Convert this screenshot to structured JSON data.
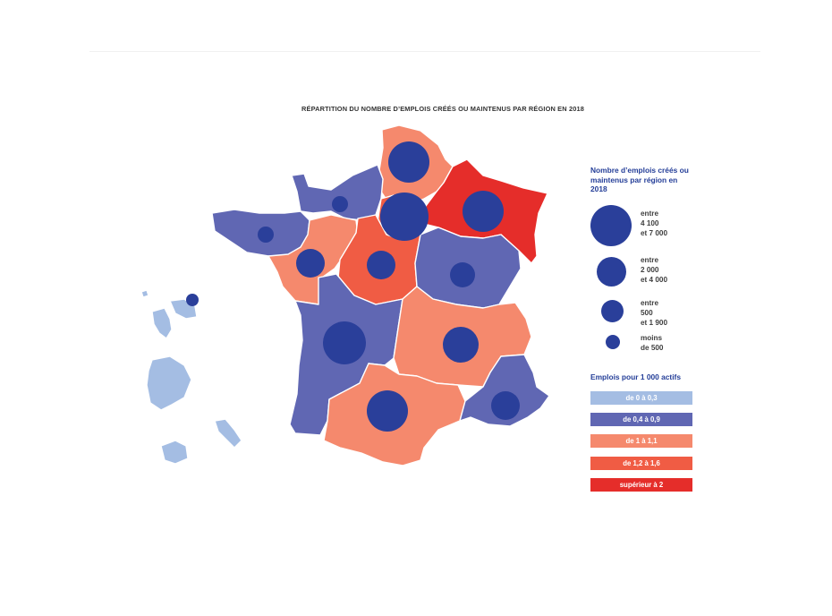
{
  "map_title": "RÉPARTITION DU NOMBRE D’EMPLOIS CRÉÉS OU MAINTENUS PAR RÉGION EN 2018",
  "colors": {
    "light_blue": "#a4bde3",
    "mid_blue": "#6067b3",
    "salmon": "#f5896d",
    "orange_red": "#f05c44",
    "red": "#e52d2a",
    "bubble": "#2a3f9a"
  },
  "legend": {
    "jobs_heading": "Nombre d’emplois créés ou maintenus par région en 2018",
    "size_classes": [
      {
        "line1": "entre",
        "line2": "4 100",
        "line3": "et 7 000"
      },
      {
        "line1": "entre",
        "line2": "2 000",
        "line3": "et 4 000"
      },
      {
        "line1": "entre",
        "line2": "500",
        "line3": "et 1 900"
      },
      {
        "line1": "moins",
        "line2": "de 500",
        "line3": ""
      }
    ],
    "ratio_heading": "Emplois pour 1 000 actifs",
    "ratio_classes": [
      {
        "label": "de 0 à 0,3",
        "color": "#a4bde3"
      },
      {
        "label": "de 0,4 à 0,9",
        "color": "#6067b3"
      },
      {
        "label": "de 1 à 1,1",
        "color": "#f5896d"
      },
      {
        "label": "de 1,2 à 1,6",
        "color": "#f05c44"
      },
      {
        "label": "supérieur à 2",
        "color": "#e52d2a"
      }
    ]
  },
  "regions": [
    {
      "name": "hauts-de-france",
      "ratio_class": "de 1 à 1,1",
      "size_class": "entre 2 000 et 4 000"
    },
    {
      "name": "grand-est",
      "ratio_class": "supérieur à 2",
      "size_class": "entre 2 000 et 4 000"
    },
    {
      "name": "normandie",
      "ratio_class": "de 0,4 à 0,9",
      "size_class": "moins de 500"
    },
    {
      "name": "ile-de-france",
      "ratio_class": "de 1,2 à 1,6",
      "size_class": "entre 4 100 et 7 000"
    },
    {
      "name": "bretagne",
      "ratio_class": "de 0,4 à 0,9",
      "size_class": "moins de 500"
    },
    {
      "name": "pays-de-la-loire",
      "ratio_class": "de 1 à 1,1",
      "size_class": "entre 500 et 1 900"
    },
    {
      "name": "centre-val-de-loire",
      "ratio_class": "de 1,2 à 1,6",
      "size_class": "entre 500 et 1 900"
    },
    {
      "name": "bourgogne-franche-comte",
      "ratio_class": "de 0,4 à 0,9",
      "size_class": "entre 500 et 1 900"
    },
    {
      "name": "nouvelle-aquitaine",
      "ratio_class": "de 0,4 à 0,9",
      "size_class": "entre 4 100 et 7 000"
    },
    {
      "name": "auvergne-rhone-alpes",
      "ratio_class": "de 1 à 1,1",
      "size_class": "entre 2 000 et 4 000"
    },
    {
      "name": "occitanie",
      "ratio_class": "de 1 à 1,1",
      "size_class": "entre 2 000 et 4 000"
    },
    {
      "name": "provence-alpes-cote-d-azur",
      "ratio_class": "de 0,4 à 0,9",
      "size_class": "entre 500 et 1 900"
    },
    {
      "name": "guadeloupe",
      "ratio_class": "de 0 à 0,3",
      "size_class": "moins de 500"
    },
    {
      "name": "martinique",
      "ratio_class": "de 0 à 0,3",
      "size_class": ""
    },
    {
      "name": "guyane",
      "ratio_class": "de 0 à 0,3",
      "size_class": ""
    },
    {
      "name": "la-reunion",
      "ratio_class": "de 0 à 0,3",
      "size_class": ""
    },
    {
      "name": "mayotte",
      "ratio_class": "de 0 à 0,3",
      "size_class": ""
    }
  ]
}
